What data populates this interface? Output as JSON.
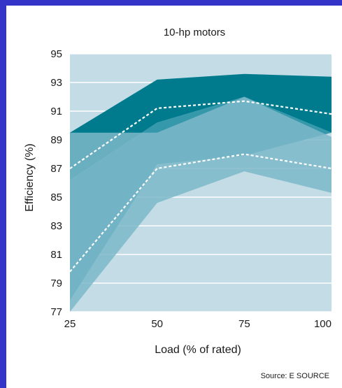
{
  "chart_data": {
    "type": "area",
    "title": "10-hp motors",
    "xlabel": "Load (% of rated)",
    "ylabel": "Efficiency (%)",
    "source": "Source: E SOURCE",
    "categories": [
      25,
      50,
      75,
      100
    ],
    "x_tick_labels": [
      "25",
      "50",
      "75",
      "100"
    ],
    "y_tick_labels": [
      "95",
      "93",
      "91",
      "89",
      "87",
      "85",
      "83",
      "81",
      "79",
      "77"
    ],
    "y_ticks": [
      95,
      93,
      91,
      89,
      87,
      85,
      83,
      81,
      79,
      77
    ],
    "xlim": [
      25,
      100
    ],
    "ylim": [
      77,
      95
    ],
    "grid": true,
    "series": [
      {
        "upper": [
          89.5,
          93.2,
          93.6,
          93.4
        ],
        "lower": [
          86.2,
          90.2,
          92.0,
          89.5
        ]
      },
      {
        "upper": [
          86.2,
          90.2,
          92.0,
          89.5
        ],
        "lower": [
          77.8,
          87.3,
          87.9,
          89.5
        ]
      },
      {
        "upper": [
          89.5,
          89.5,
          92.0,
          89.2
        ],
        "lower": [
          77.0,
          84.6,
          86.8,
          85.3
        ]
      },
      {
        "values": [
          87.0,
          91.2,
          91.7,
          90.8
        ]
      },
      {
        "values": [
          79.8,
          87.0,
          88.0,
          87.0
        ]
      }
    ],
    "colors": {
      "background": "#c3dce5",
      "band_top": "#007b8e",
      "band_mid": "#3598ab",
      "band_light": "#7db9c9",
      "dashed": "#ffffff",
      "grid": "#ffffff"
    }
  }
}
